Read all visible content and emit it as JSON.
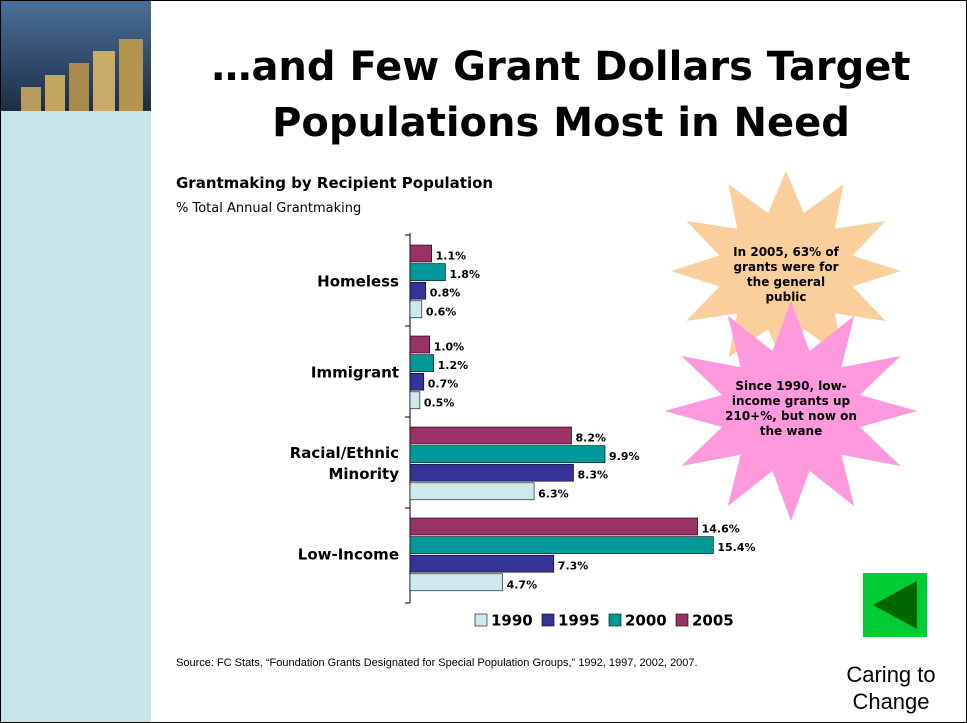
{
  "slide_title": "…and Few Grant Dollars Target Populations Most in Need",
  "chart_data": {
    "type": "bar",
    "orientation": "horizontal",
    "title": "Grantmaking by Recipient Population",
    "subtitle": "% Total Annual Grantmaking",
    "categories": [
      "Homeless",
      "Immigrant",
      "Racial/Ethnic Minority",
      "Low-Income"
    ],
    "series": [
      {
        "name": "1990",
        "color": "#cce8ec",
        "values": [
          0.6,
          0.5,
          6.3,
          4.7
        ],
        "value_labels": [
          "0.6%",
          "0.5%",
          "6.3%",
          "4.7%"
        ]
      },
      {
        "name": "1995",
        "color": "#333399",
        "values": [
          0.8,
          0.7,
          8.3,
          7.3
        ],
        "value_labels": [
          "0.8%",
          "0.7%",
          "8.3%",
          "7.3%"
        ]
      },
      {
        "name": "2000",
        "color": "#009999",
        "values": [
          1.8,
          1.2,
          9.9,
          15.4
        ],
        "value_labels": [
          "1.8%",
          "1.2%",
          "9.9%",
          "15.4%"
        ]
      },
      {
        "name": "2005",
        "color": "#993366",
        "values": [
          1.1,
          1.0,
          8.2,
          14.6
        ],
        "value_labels": [
          "1.1%",
          "1.0%",
          "8.2%",
          "14.6%"
        ]
      }
    ],
    "legend": "bottom"
  },
  "annotations": [
    "In 2005, 63% of grants were for the general public",
    "Since 1990, low-income grants up 210+%, but now on the wane"
  ],
  "source": "Source:  FC Stats, “Foundation Grants Designated for Special Population Groups,” 1992, 1997, 2002, 2007.",
  "footer": "Caring to Change"
}
